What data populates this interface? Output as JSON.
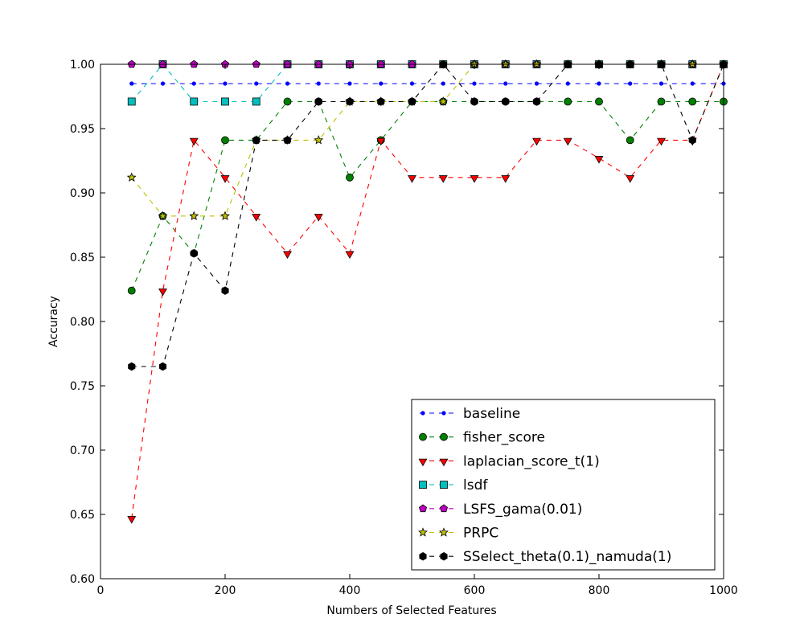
{
  "chart_data": {
    "type": "line",
    "title": "",
    "xlabel": "Numbers of Selected Features",
    "ylabel": "Accuracy",
    "xlim": [
      0,
      1000
    ],
    "ylim": [
      0.6,
      1.0
    ],
    "xticks": [
      "0",
      "200",
      "400",
      "600",
      "800",
      "1000"
    ],
    "yticks": [
      "0.60",
      "0.65",
      "0.70",
      "0.75",
      "0.80",
      "0.85",
      "0.90",
      "0.95",
      "1.00"
    ],
    "grid": false,
    "legend_position": "lower-right",
    "x": [
      50,
      100,
      150,
      200,
      250,
      300,
      350,
      400,
      450,
      500,
      550,
      600,
      650,
      700,
      750,
      800,
      850,
      900,
      950,
      1000
    ],
    "series": [
      {
        "name": "baseline",
        "color": "#0000ff",
        "marker": "point",
        "values": [
          0.985,
          0.985,
          0.985,
          0.985,
          0.985,
          0.985,
          0.985,
          0.985,
          0.985,
          0.985,
          0.985,
          0.985,
          0.985,
          0.985,
          0.985,
          0.985,
          0.985,
          0.985,
          0.985,
          0.985
        ]
      },
      {
        "name": "fisher_score",
        "color": "#008000",
        "marker": "circle",
        "values": [
          0.824,
          0.882,
          0.853,
          0.941,
          0.941,
          0.971,
          0.971,
          0.912,
          0.941,
          0.971,
          0.971,
          0.971,
          0.971,
          0.971,
          0.971,
          0.971,
          0.941,
          0.971,
          0.971,
          0.971
        ]
      },
      {
        "name": "laplacian_score_t(1)",
        "color": "#ff0000",
        "marker": "triangle-down",
        "values": [
          0.647,
          0.824,
          0.941,
          0.912,
          0.882,
          0.853,
          0.882,
          0.853,
          0.941,
          0.912,
          0.912,
          0.912,
          0.912,
          0.941,
          0.941,
          0.927,
          0.912,
          0.941,
          0.941,
          1.0
        ]
      },
      {
        "name": "lsdf",
        "color": "#00bfbf",
        "marker": "square",
        "values": [
          0.971,
          1.0,
          0.971,
          0.971,
          0.971,
          1.0,
          1.0,
          1.0,
          1.0,
          1.0,
          1.0,
          1.0,
          1.0,
          1.0,
          1.0,
          1.0,
          1.0,
          1.0,
          1.0,
          1.0
        ]
      },
      {
        "name": "LSFS_gama(0.01)",
        "color": "#bf00bf",
        "marker": "pentagon",
        "values": [
          1.0,
          1.0,
          1.0,
          1.0,
          1.0,
          1.0,
          1.0,
          1.0,
          1.0,
          1.0,
          1.0,
          1.0,
          1.0,
          1.0,
          1.0,
          1.0,
          1.0,
          1.0,
          1.0,
          1.0
        ]
      },
      {
        "name": "PRPC",
        "color": "#bfbf00",
        "marker": "star",
        "values": [
          0.912,
          0.882,
          0.882,
          0.882,
          0.941,
          0.941,
          0.941,
          0.971,
          0.971,
          0.971,
          0.971,
          1.0,
          1.0,
          1.0,
          1.0,
          1.0,
          1.0,
          1.0,
          1.0,
          1.0
        ]
      },
      {
        "name": "SSelect_theta(0.1)_namuda(1)",
        "color": "#000000",
        "marker": "hexagon",
        "values": [
          0.765,
          0.765,
          0.853,
          0.824,
          0.941,
          0.941,
          0.971,
          0.971,
          0.971,
          0.971,
          1.0,
          0.971,
          0.971,
          0.971,
          1.0,
          1.0,
          1.0,
          1.0,
          0.941,
          1.0
        ]
      }
    ]
  }
}
